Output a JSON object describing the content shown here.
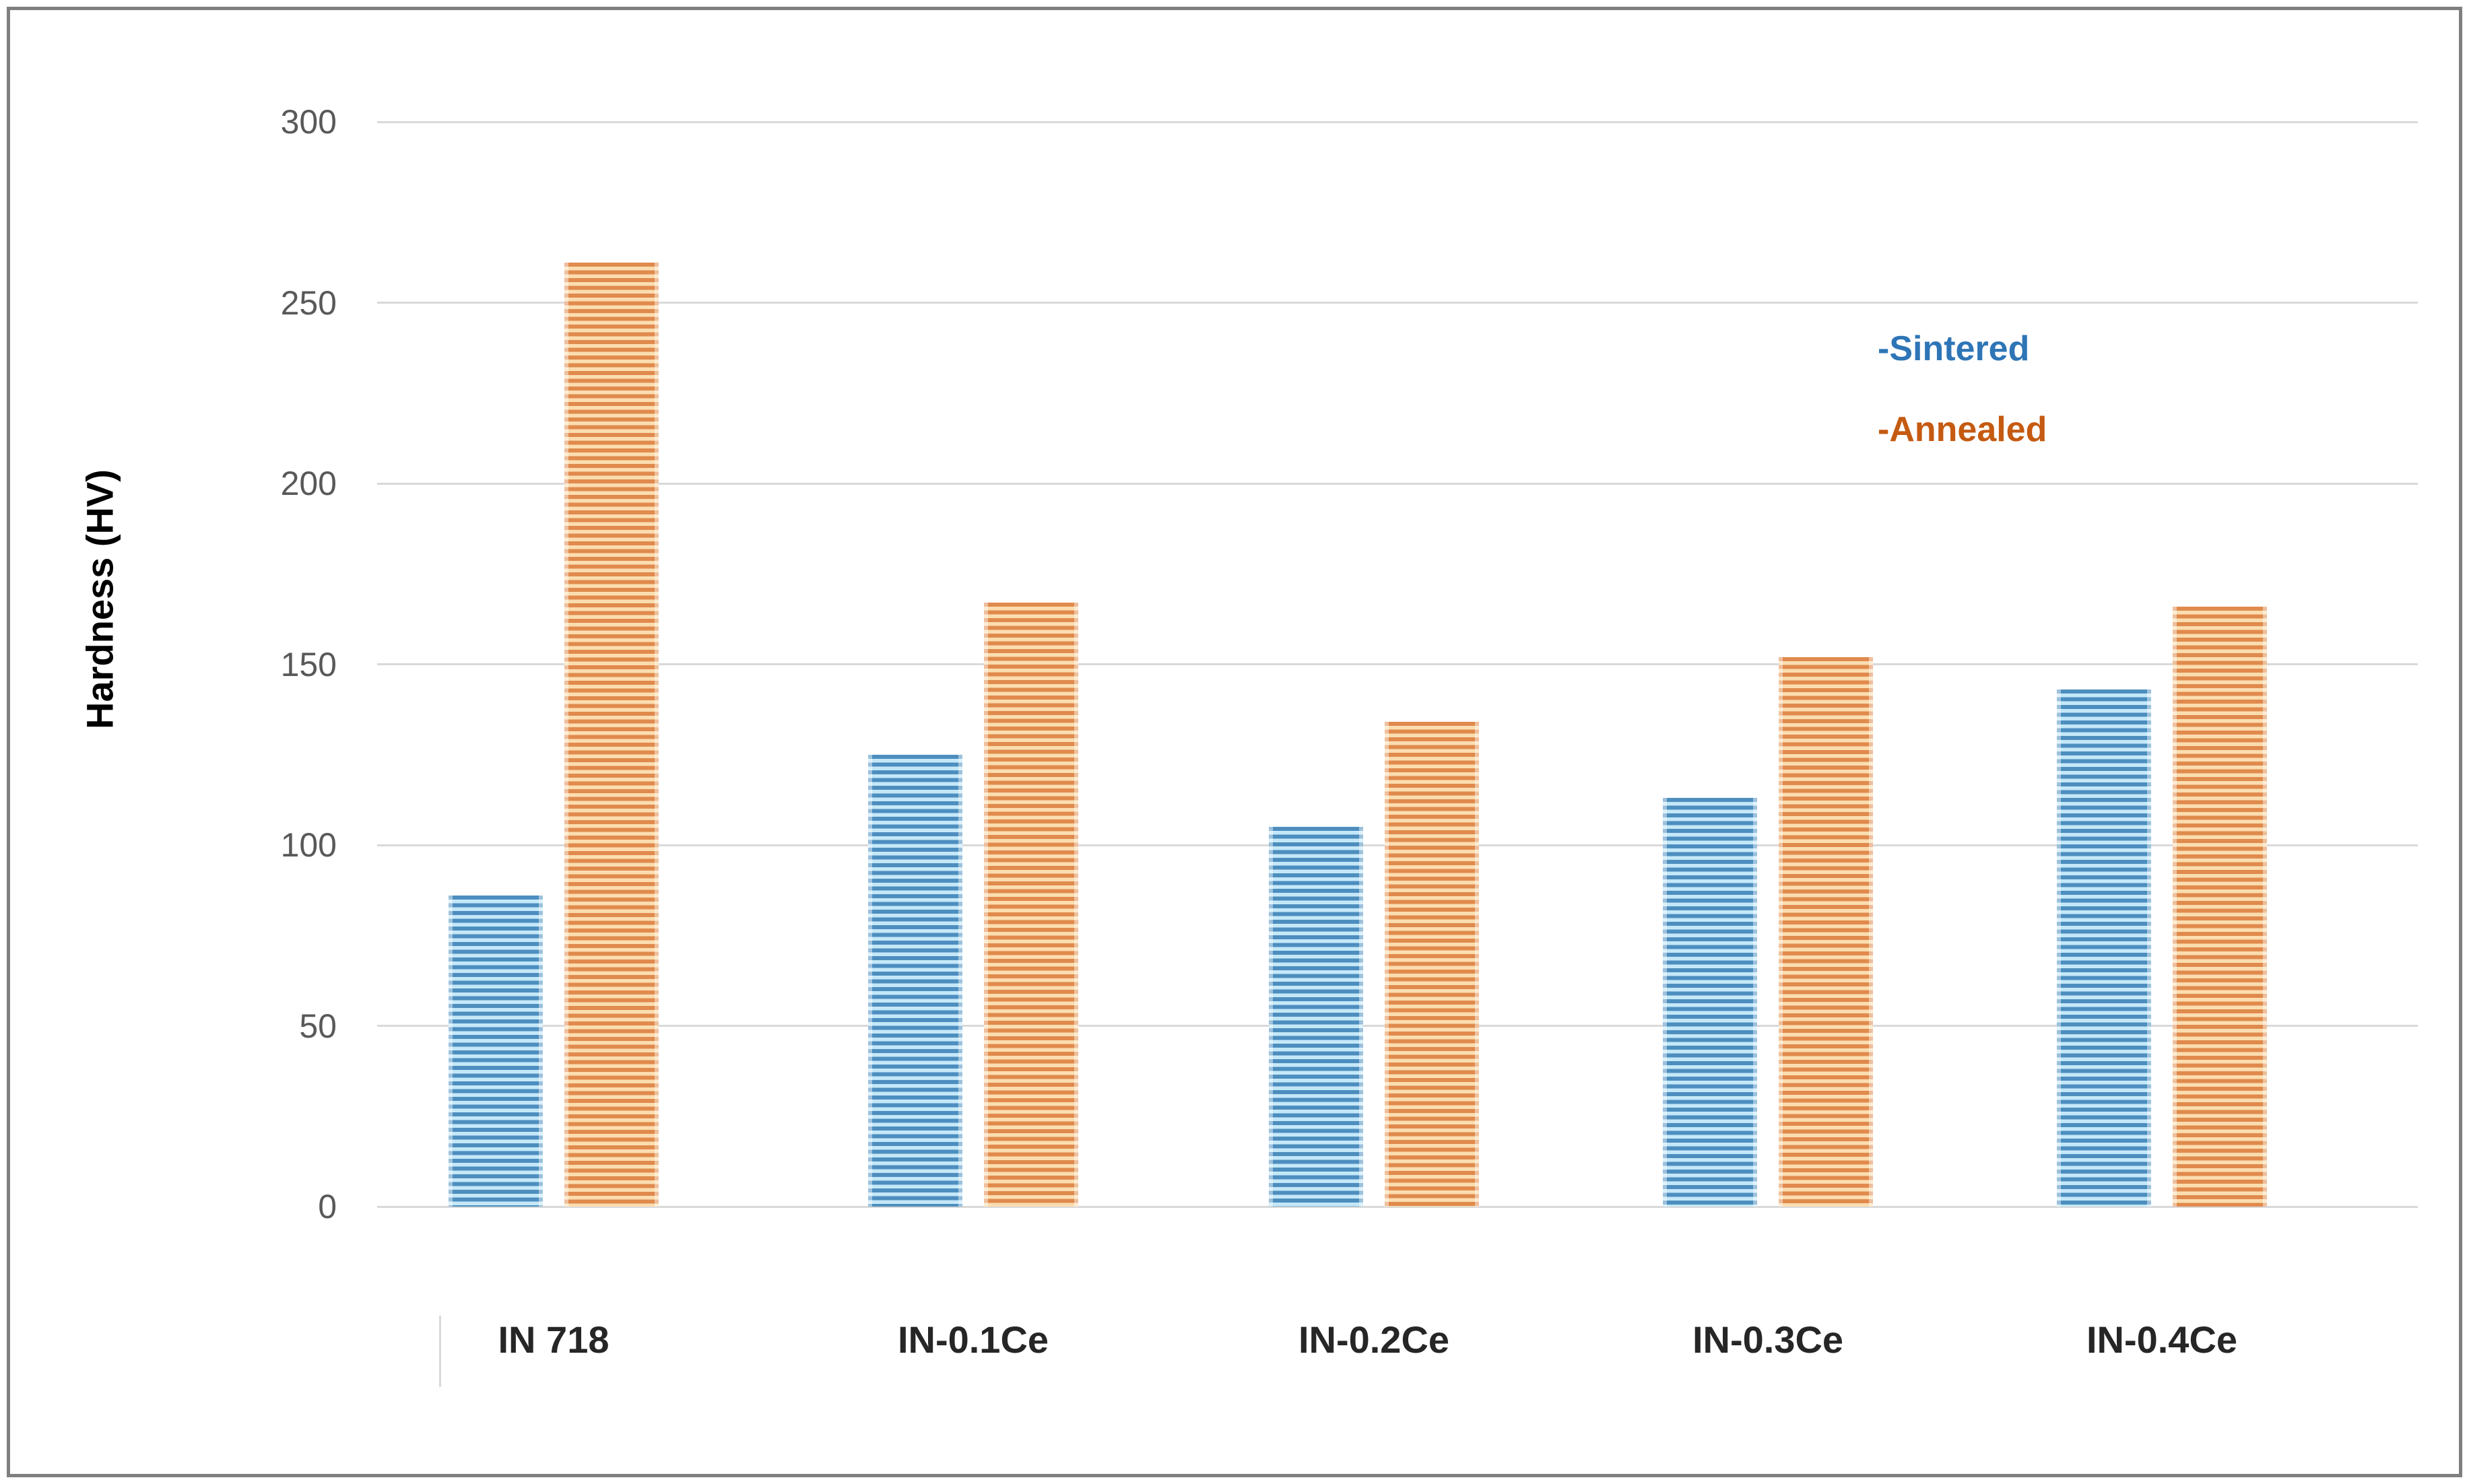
{
  "chart_data": {
    "type": "bar",
    "title": "",
    "ylabel": "Hardness (HV)",
    "xlabel": "",
    "categories": [
      "IN 718",
      "IN-0.1Ce",
      "IN-0.2Ce",
      "IN-0.3Ce",
      "IN-0.4Ce"
    ],
    "series": [
      {
        "name": "-Sintered",
        "values": [
          86,
          125,
          105,
          113,
          143
        ],
        "bar_stripe_color": "#4d8ebf",
        "bar_stripe_light": "#c5e8f8",
        "legend_text_color": "#2e75b6"
      },
      {
        "name": "-Annealed",
        "values": [
          261,
          167,
          134,
          152,
          166
        ],
        "bar_stripe_color": "#e08a4d",
        "bar_stripe_light": "#fbddb0",
        "legend_text_color": "#c55a11"
      }
    ],
    "y_ticks": [
      300,
      250,
      200,
      150,
      100,
      50,
      0
    ],
    "ylim": [
      0,
      300
    ],
    "grid": true,
    "gridline_color": "#d9d9d9",
    "legend_position": "upper right",
    "pattern": "horizontal-stripes"
  }
}
